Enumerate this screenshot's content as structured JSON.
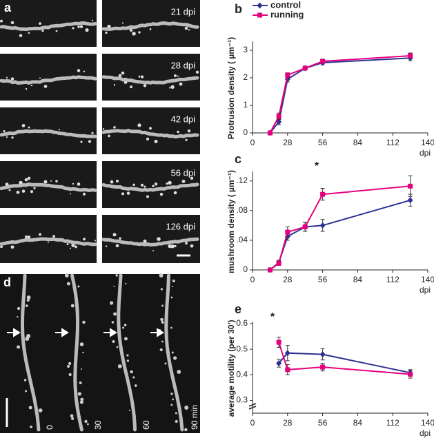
{
  "panels": {
    "a": {
      "letter": "a",
      "labels": [
        "21 dpi",
        "28 dpi",
        "42 dpi",
        "56 dpi",
        "126 dpi"
      ]
    },
    "d": {
      "letter": "d",
      "labels": [
        "0",
        "30",
        "60",
        "90 min"
      ]
    }
  },
  "chart_data": [
    {
      "type": "line",
      "panel_label": "b",
      "y_label": "Protrusion density ( µm⁻¹)",
      "x_label": "dpi",
      "x": [
        14,
        21,
        28,
        42,
        56,
        126
      ],
      "series": [
        {
          "name": "control",
          "color": "#2e3192",
          "marker": "diamond",
          "values": [
            0,
            0.4,
            1.95,
            2.35,
            2.55,
            2.72
          ],
          "errors": [
            0.03,
            0.1,
            0.1,
            0.06,
            0.08,
            0.1
          ]
        },
        {
          "name": "running",
          "color": "#e6007e",
          "marker": "square",
          "values": [
            0,
            0.6,
            2.1,
            2.35,
            2.6,
            2.8
          ],
          "errors": [
            0.03,
            0.12,
            0.08,
            0.06,
            0.08,
            0.1
          ]
        }
      ],
      "xlim": [
        0,
        140
      ],
      "xticks": [
        0,
        28,
        56,
        84,
        112,
        140
      ],
      "ylim": [
        0,
        3.25
      ],
      "yticks": [
        0,
        1,
        2,
        3
      ],
      "legend": "top-left"
    },
    {
      "type": "line",
      "panel_label": "c",
      "y_label": "mushroom density ( µm⁻¹)",
      "x_label": "dpi",
      "annotation": "*",
      "x": [
        14,
        21,
        28,
        42,
        56,
        126
      ],
      "series": [
        {
          "name": "control",
          "color": "#2e3192",
          "marker": "diamond",
          "values": [
            0,
            0.01,
            0.045,
            0.058,
            0.06,
            0.094
          ],
          "errors": [
            0.001,
            0.003,
            0.005,
            0.006,
            0.008,
            0.008
          ]
        },
        {
          "name": "running",
          "color": "#e6007e",
          "marker": "square",
          "values": [
            0,
            0.009,
            0.051,
            0.058,
            0.102,
            0.113
          ],
          "errors": [
            0.001,
            0.003,
            0.007,
            0.006,
            0.008,
            0.014
          ]
        }
      ],
      "xlim": [
        0,
        140
      ],
      "xticks": [
        0,
        28,
        56,
        84,
        112,
        140
      ],
      "ylim": [
        0,
        0.13
      ],
      "yticks": [
        0,
        {
          "value": 0.04,
          "label": ".04"
        },
        {
          "value": 0.08,
          "label": ".08"
        },
        {
          "value": 0.12,
          "label": ".12"
        }
      ]
    },
    {
      "type": "line",
      "panel_label": "e",
      "y_label": "average motility (per 30')",
      "x_label": "dpi",
      "annotation": "*",
      "x": [
        21,
        28,
        56,
        126
      ],
      "series": [
        {
          "name": "control",
          "color": "#2e3192",
          "marker": "diamond",
          "values": [
            0.445,
            0.485,
            0.48,
            0.408
          ],
          "errors": [
            0.015,
            0.03,
            0.022,
            0.012
          ]
        },
        {
          "name": "running",
          "color": "#e6007e",
          "marker": "square",
          "values": [
            0.527,
            0.42,
            0.43,
            0.402
          ],
          "errors": [
            0.02,
            0.02,
            0.015,
            0.015
          ]
        }
      ],
      "xlim": [
        0,
        140
      ],
      "xticks": [
        0,
        28,
        56,
        84,
        112,
        140
      ],
      "ylim": [
        0.25,
        0.6
      ],
      "yticks": [
        0.3,
        0.4,
        0.5,
        0.6
      ]
    }
  ]
}
